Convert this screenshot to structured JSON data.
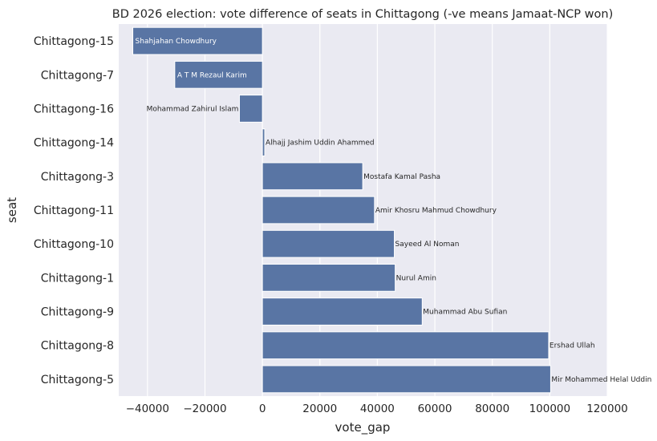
{
  "chart_data": {
    "type": "bar",
    "orientation": "horizontal",
    "title": "BD 2026 election: vote difference of seats in Chittagong (-ve means Jamaat-NCP won)",
    "xlabel": "vote_gap",
    "ylabel": "seat",
    "xlim": [
      -50000,
      120000
    ],
    "xticks": [
      -40000,
      -20000,
      0,
      20000,
      40000,
      60000,
      80000,
      100000,
      120000
    ],
    "xtick_labels": [
      "−40000",
      "−20000",
      "0",
      "20000",
      "40000",
      "60000",
      "80000",
      "100000",
      "120000"
    ],
    "grid": true,
    "bar_color": "#5975a4",
    "background_color": "#eaeaf2",
    "categories": [
      "Chittagong-15",
      "Chittagong-7",
      "Chittagong-16",
      "Chittagong-14",
      "Chittagong-3",
      "Chittagong-11",
      "Chittagong-10",
      "Chittagong-1",
      "Chittagong-9",
      "Chittagong-8",
      "Chittagong-5"
    ],
    "values": [
      -45100,
      -30500,
      -8000,
      800,
      34900,
      39000,
      45900,
      46200,
      55600,
      99600,
      100300
    ],
    "bar_labels": [
      "Shahjahan Chowdhury",
      "A T M Rezaul Karim",
      "Mohammad Zahirul Islam",
      "Alhajj Jashim Uddin Ahammed",
      "Mostafa Kamal Pasha",
      "Amir Khosru Mahmud Chowdhury",
      "Sayeed Al Noman",
      "Nurul Amin",
      "Muhammad Abu Sufian",
      "Ershad Ullah",
      "Mir Mohammed Helal Uddin"
    ]
  }
}
